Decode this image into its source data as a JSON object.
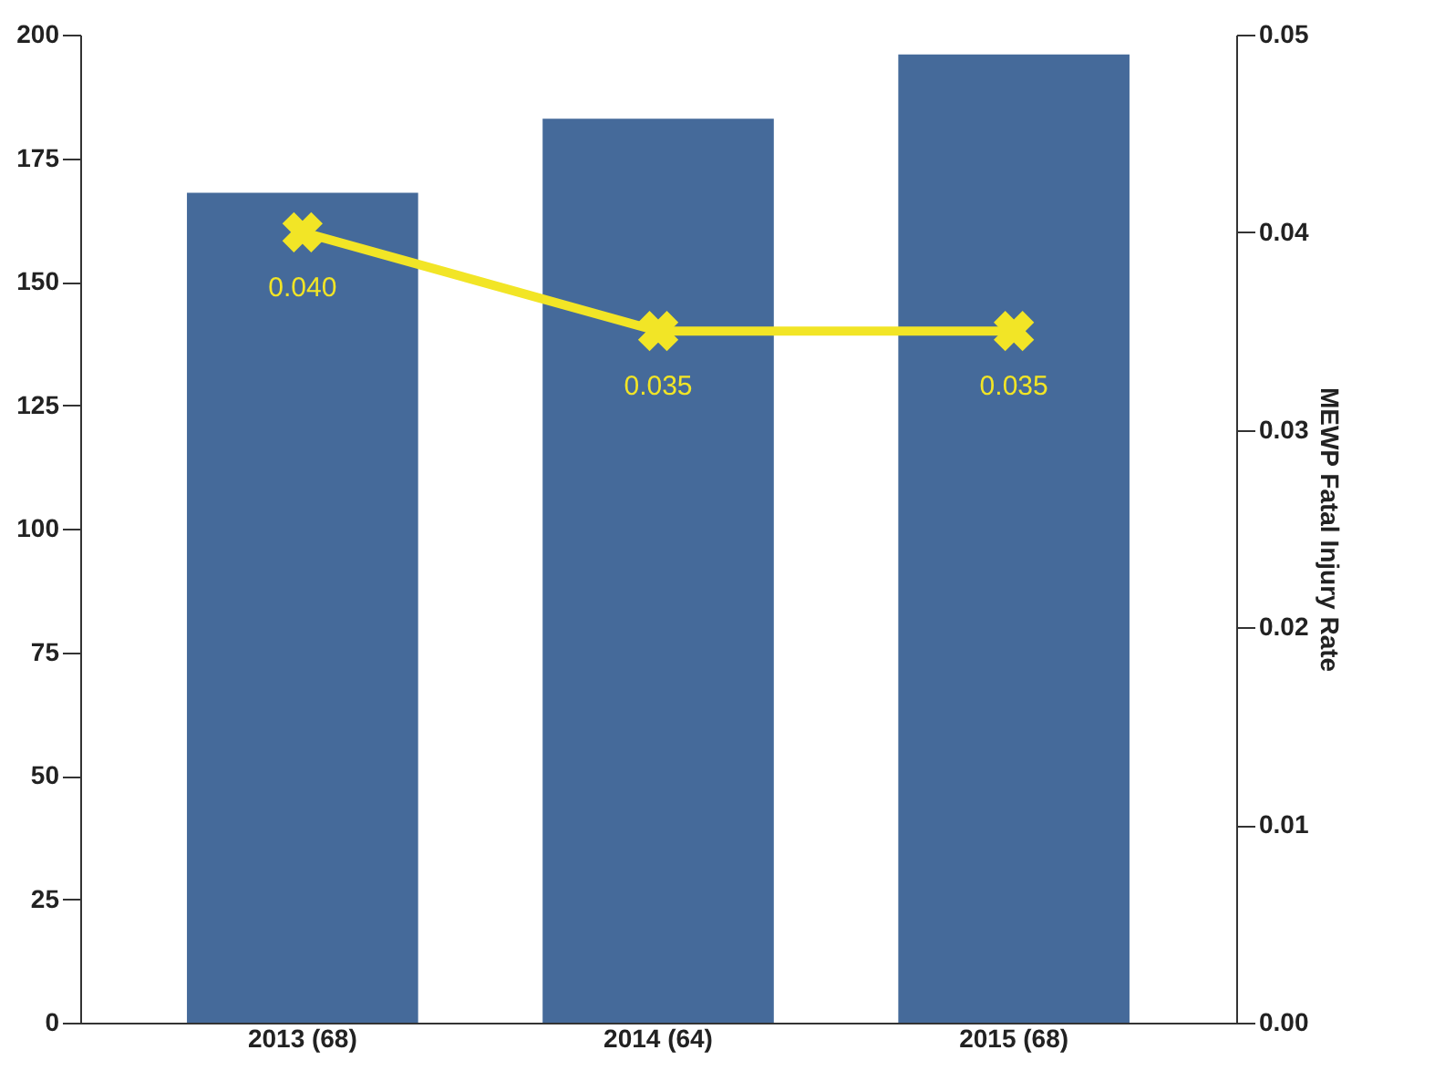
{
  "chart_data": {
    "type": "bar",
    "categories": [
      "2013 (68)",
      "2014 (64)",
      "2015 (68)"
    ],
    "y2label": "MEWP Fatal Injury Rate",
    "series": [
      {
        "color": "#456a9a",
        "values": [
          168,
          183,
          196
        ]
      },
      {
        "type": "line",
        "axis": "y2",
        "color": "#f2e526",
        "values": [
          0.04,
          0.035,
          0.035
        ],
        "value_labels": [
          "0.040",
          "0.035",
          "0.035"
        ]
      }
    ],
    "ylim": [
      0,
      200
    ],
    "yticks": [
      0,
      25,
      50,
      75,
      100,
      125,
      150,
      175,
      200
    ],
    "y2lim": [
      0,
      0.05
    ],
    "y2ticks": [
      {
        "value": 0,
        "label": "0.00"
      },
      {
        "value": 0.01,
        "label": "0.01"
      },
      {
        "value": 0.02,
        "label": "0.02"
      },
      {
        "value": 0.03,
        "label": "0.03"
      },
      {
        "value": 0.04,
        "label": "0.04"
      },
      {
        "value": 0.05,
        "label": "0.05"
      }
    ],
    "grid": false,
    "marker": "cross",
    "line_style": "solid"
  }
}
